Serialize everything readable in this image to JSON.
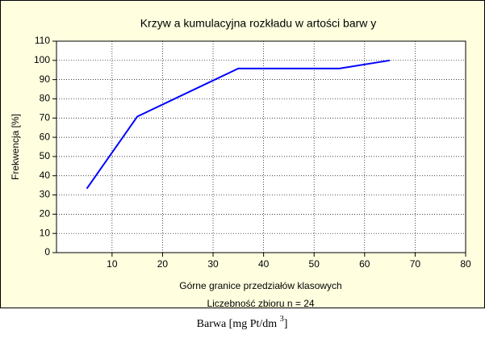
{
  "chart_data": {
    "type": "line",
    "title": "Krzyw a kumulacyjna rozkładu w artości barw y",
    "xlabel": "Górne granice przedziałów klasowych",
    "note": "Liczebność zbioru  n = 24",
    "ylabel": "Frekwencja [%]",
    "x": [
      5,
      15,
      35,
      55,
      65
    ],
    "series": [
      {
        "name": "Frekwencja",
        "color": "#0000ff",
        "values": [
          33.3,
          70.8,
          95.8,
          95.8,
          100
        ]
      }
    ],
    "xlim": [
      -1,
      80
    ],
    "xticks": [
      10,
      20,
      30,
      40,
      50,
      60,
      70,
      80
    ],
    "ylim": [
      0,
      110
    ],
    "yticks": [
      0,
      10,
      20,
      30,
      40,
      50,
      60,
      70,
      80,
      90,
      100,
      110
    ],
    "grid": true,
    "background": "#ffffe0"
  },
  "caption": {
    "text": "Barwa  [mg Pt/dm ",
    "superscript": "3",
    "close": "]"
  }
}
